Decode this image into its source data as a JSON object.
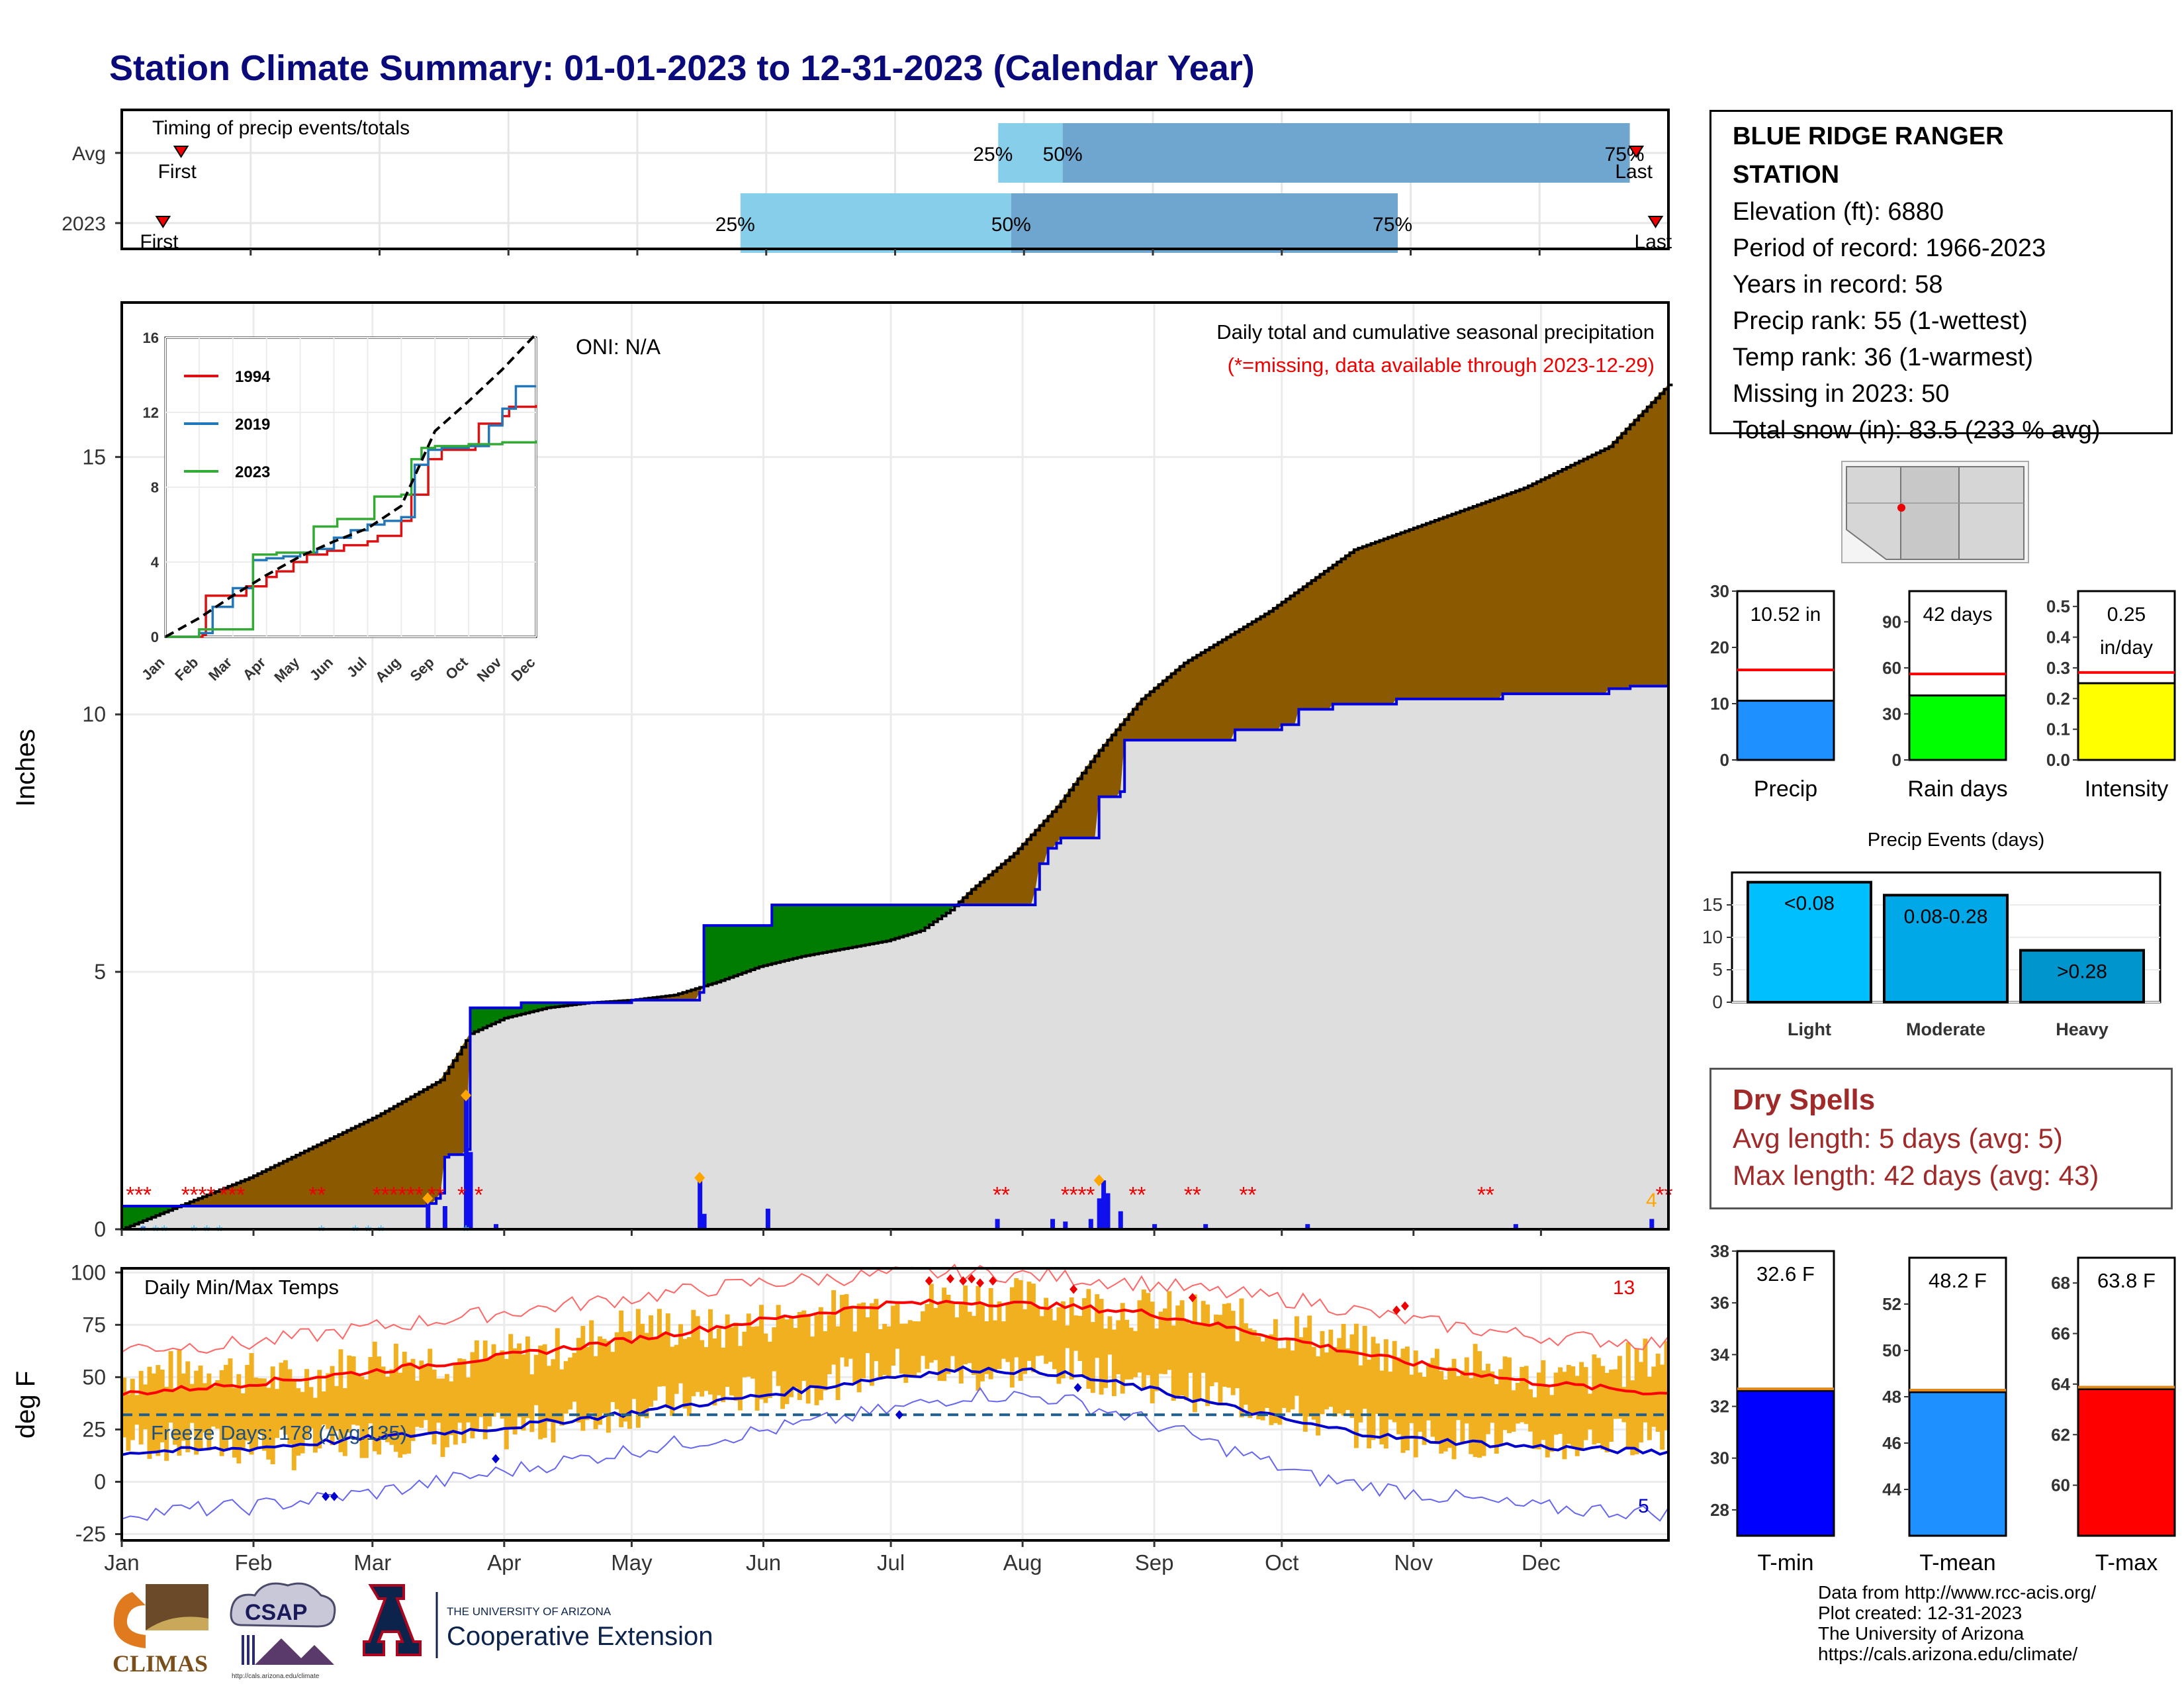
{
  "title": "Station Climate Summary: 01-01-2023 to 12-31-2023 (Calendar Year)",
  "station_info": {
    "name": "BLUE RIDGE RANGER STATION",
    "rows": [
      "Elevation (ft): 6880",
      "Period of record: 1966-2023",
      "Years in record: 58",
      "Precip rank: 55 (1-wettest)",
      "Temp rank: 36 (1-warmest)",
      "Missing in 2023: 50",
      "Total snow (in): 83.5 (233 % avg)"
    ]
  },
  "dry_spells": {
    "header": "Dry Spells",
    "avg": "Avg length: 5 days (avg: 5)",
    "max": "Max length: 42 days (avg: 43)"
  },
  "credits": [
    "Data from http://www.rcc-acis.org/",
    "Plot created: 12-31-2023",
    "The University of Arizona",
    "https://cals.arizona.edu/climate/"
  ],
  "logos": {
    "climas": "CLIMAS",
    "csap": "CSAP",
    "csap_url": "http://cals.arizona.edu/climate",
    "ua_small": "THE UNIVERSITY OF ARIZONA",
    "ua_ext": "Cooperative Extension"
  },
  "colors": {
    "navy_title": "#0a0a7a",
    "cum_avg_fill": "#8b5a00",
    "above_avg_fill": "#007d00",
    "base_gray": "#dedede",
    "precip_line": "#0000dd",
    "temp_bar": "#f0b020",
    "temp_max": "#ff0000",
    "temp_min": "#0000cc",
    "light_blue": "#87ceeb",
    "mid_blue": "#6fa6cf"
  },
  "chart_data": [
    {
      "type": "bar",
      "title": "Timing of precip events/totals",
      "categories": [
        "Avg",
        "2023"
      ],
      "series": [
        {
          "name": "25%",
          "values": [
            6.8,
            4.8
          ]
        },
        {
          "name": "50%",
          "values": [
            7.3,
            6.9
          ]
        },
        {
          "name": "75%",
          "values": [
            11.7,
            9.9
          ]
        }
      ],
      "first": [
        0.46,
        0.32
      ],
      "last": [
        11.75,
        11.9
      ],
      "xlim": [
        0,
        12
      ],
      "labels": {
        "first": "First",
        "last": "Last",
        "q25": "25%",
        "q50": "50%",
        "q75": "75%"
      }
    },
    {
      "type": "area",
      "title": "Daily total and cumulative seasonal precipitation",
      "subtitle": "(*=missing, data available through 2023-12-29)",
      "annotation": "ONI: N/A",
      "ylabel": "Inches",
      "ylim": [
        0,
        18
      ],
      "yticks": [
        0,
        5,
        10,
        15
      ],
      "x_months": [
        "Jan",
        "Feb",
        "Mar",
        "Apr",
        "May",
        "Jun",
        "Jul",
        "Aug",
        "Sep",
        "Oct",
        "Nov",
        "Dec"
      ],
      "avg_cumulative": {
        "x": [
          0,
          15,
          30,
          45,
          60,
          75,
          79,
          82,
          90,
          100,
          110,
          120,
          130,
          140,
          150,
          160,
          170,
          180,
          188,
          195,
          200,
          210,
          220,
          230,
          240,
          250,
          260,
          270,
          280,
          290,
          300,
          310,
          320,
          330,
          340,
          350,
          364
        ],
        "y": [
          0,
          0.5,
          1.0,
          1.6,
          2.2,
          2.9,
          3.4,
          3.8,
          4.1,
          4.3,
          4.4,
          4.45,
          4.55,
          4.8,
          5.1,
          5.3,
          5.45,
          5.6,
          5.8,
          6.2,
          6.6,
          7.3,
          8.2,
          9.3,
          10.3,
          11.0,
          11.5,
          12.0,
          12.6,
          13.2,
          13.5,
          13.8,
          14.1,
          14.4,
          14.8,
          15.2,
          16.4
        ]
      },
      "cumulative_2023": {
        "x": [
          0,
          5,
          10,
          15,
          25,
          30,
          40,
          45,
          60,
          65,
          66,
          72,
          74,
          75,
          76,
          77,
          81,
          82,
          94,
          120,
          136,
          137,
          152,
          153,
          196,
          215,
          216,
          218,
          220,
          221,
          222,
          223,
          230,
          235,
          236,
          262,
          273,
          277,
          285,
          297,
          300,
          325,
          350,
          355,
          364
        ],
        "y": [
          0.45,
          0.45,
          0.45,
          0.45,
          0.45,
          0.45,
          0.45,
          0.45,
          0.45,
          0.45,
          0.45,
          0.5,
          0.6,
          0.7,
          1.4,
          1.45,
          1.55,
          4.3,
          4.4,
          4.45,
          4.6,
          5.9,
          5.9,
          6.3,
          6.3,
          6.6,
          7.1,
          7.4,
          7.5,
          7.6,
          7.6,
          7.6,
          8.4,
          8.5,
          9.5,
          9.7,
          9.8,
          10.1,
          10.2,
          10.2,
          10.3,
          10.4,
          10.5,
          10.55,
          10.5
        ]
      },
      "daily_precip_bars": [
        {
          "day": 5,
          "value": 0.05
        },
        {
          "day": 72,
          "value": 0.6
        },
        {
          "day": 76,
          "value": 0.45
        },
        {
          "day": 81,
          "value": 2.6
        },
        {
          "day": 82,
          "value": 1.5
        },
        {
          "day": 88,
          "value": 0.1
        },
        {
          "day": 136,
          "value": 1.0
        },
        {
          "day": 137,
          "value": 0.3
        },
        {
          "day": 152,
          "value": 0.4
        },
        {
          "day": 206,
          "value": 0.2
        },
        {
          "day": 219,
          "value": 0.2
        },
        {
          "day": 222,
          "value": 0.15
        },
        {
          "day": 228,
          "value": 0.2
        },
        {
          "day": 230,
          "value": 0.6
        },
        {
          "day": 231,
          "value": 0.95
        },
        {
          "day": 232,
          "value": 0.7
        },
        {
          "day": 235,
          "value": 0.35
        },
        {
          "day": 243,
          "value": 0.1
        },
        {
          "day": 255,
          "value": 0.1
        },
        {
          "day": 279,
          "value": 0.1
        },
        {
          "day": 328,
          "value": 0.1
        },
        {
          "day": 360,
          "value": 0.2
        }
      ],
      "count_label": "4",
      "inset": {
        "type": "line",
        "yticks": [
          0,
          4,
          8,
          12,
          16
        ],
        "ylim": [
          0,
          16
        ],
        "x_months": [
          "Jan",
          "Feb",
          "Mar",
          "Apr",
          "May",
          "Jun",
          "Jul",
          "Aug",
          "Sep",
          "Oct",
          "Nov",
          "Dec"
        ],
        "series": [
          {
            "name": "1994",
            "color": "#dd1111",
            "x": [
              0,
              1.1,
              1.2,
              2,
              2.4,
              3,
              3.3,
              3.8,
              4.2,
              4.8,
              5.3,
              6,
              6.3,
              7,
              7.3,
              7.8,
              8.2,
              9.2,
              9.3,
              10,
              10.2,
              11
            ],
            "y": [
              0,
              0.1,
              2.2,
              2.2,
              2.7,
              3.2,
              3.5,
              4.0,
              4.4,
              4.6,
              4.9,
              5.1,
              5.4,
              6.2,
              7.6,
              9.5,
              10.0,
              10.2,
              11.4,
              11.8,
              12.3,
              12.4
            ]
          },
          {
            "name": "2019",
            "color": "#2277bb",
            "x": [
              0,
              1,
              1.4,
              2,
              2.6,
              3,
              3.5,
              4,
              4.5,
              5,
              5.5,
              6,
              6.5,
              7,
              7.4,
              7.8,
              8.2,
              9.0,
              9.6,
              10,
              10.4,
              11
            ],
            "y": [
              0,
              0.2,
              1.6,
              2.6,
              4.1,
              4.2,
              4.3,
              4.5,
              4.7,
              5.3,
              5.7,
              6.0,
              6.2,
              6.4,
              9.2,
              10.0,
              10.1,
              10.2,
              11.3,
              12.2,
              13.4,
              13.4
            ]
          },
          {
            "name": "2023",
            "color": "#33aa33",
            "x": [
              0,
              1,
              2.6,
              2.6,
              3.3,
              4,
              4.4,
              5,
              5.1,
              6,
              6.2,
              7,
              7.3,
              7.6,
              8,
              9,
              10,
              11
            ],
            "y": [
              0,
              0.4,
              0.4,
              4.4,
              4.5,
              4.5,
              5.9,
              5.9,
              6.3,
              6.3,
              7.5,
              7.6,
              9.5,
              10.1,
              10.2,
              10.3,
              10.4,
              10.5
            ]
          },
          {
            "name": "Avg",
            "color": "#000000",
            "dashed": true,
            "x": [
              0,
              1,
              2,
              3,
              4,
              5,
              6,
              7,
              7.5,
              8,
              8.5,
              9,
              10,
              11
            ],
            "y": [
              0,
              1.0,
              2.2,
              3.3,
              4.3,
              5.1,
              5.8,
              7.0,
              9.0,
              11.0,
              11.8,
              12.6,
              14.3,
              16.2
            ]
          }
        ]
      }
    },
    {
      "type": "line",
      "title": "Daily Min/Max Temps",
      "ylabel": "deg F",
      "ylim": [
        -28,
        102
      ],
      "yticks": [
        -25,
        0,
        25,
        50,
        75,
        100
      ],
      "x_months": [
        "Jan",
        "Feb",
        "Mar",
        "Apr",
        "May",
        "Jun",
        "Jul",
        "Aug",
        "Sep",
        "Oct",
        "Nov",
        "Dec"
      ],
      "freeze_label": "Freeze Days: 178 (Avg:135)",
      "freeze_line": 32,
      "count_hot": "13",
      "count_cold": "5",
      "avg_max": {
        "x": [
          0,
          30,
          60,
          90,
          120,
          150,
          180,
          200,
          220,
          240,
          260,
          280,
          300,
          330,
          364
        ],
        "y": [
          42,
          47,
          53,
          60,
          68,
          77,
          85,
          86,
          84,
          81,
          74,
          66,
          58,
          48,
          42
        ]
      },
      "avg_min": {
        "x": [
          0,
          30,
          60,
          90,
          120,
          150,
          180,
          200,
          220,
          240,
          260,
          280,
          300,
          330,
          364
        ],
        "y": [
          14,
          16,
          21,
          26,
          33,
          41,
          50,
          54,
          52,
          45,
          36,
          27,
          21,
          17,
          14
        ]
      },
      "record_max": {
        "x": [
          0,
          30,
          60,
          90,
          120,
          150,
          180,
          200,
          220,
          240,
          260,
          280,
          300,
          330,
          364
        ],
        "y": [
          64,
          66,
          74,
          81,
          88,
          95,
          99,
          100,
          98,
          95,
          90,
          86,
          78,
          70,
          66
        ]
      },
      "record_min": {
        "x": [
          0,
          30,
          60,
          90,
          120,
          150,
          180,
          200,
          220,
          240,
          260,
          280,
          300,
          330,
          364
        ],
        "y": [
          -15,
          -12,
          -5,
          5,
          15,
          24,
          34,
          42,
          40,
          30,
          16,
          2,
          -4,
          -12,
          -15
        ]
      },
      "daily_high": {
        "x": [
          0,
          20,
          40,
          60,
          80,
          100,
          120,
          140,
          160,
          180,
          200,
          220,
          240,
          260,
          280,
          300,
          320,
          340,
          364
        ],
        "y": [
          50,
          55,
          48,
          60,
          58,
          62,
          75,
          72,
          80,
          84,
          88,
          86,
          82,
          78,
          70,
          60,
          55,
          48,
          62
        ]
      },
      "daily_low": {
        "x": [
          0,
          20,
          40,
          60,
          80,
          100,
          120,
          140,
          160,
          180,
          200,
          220,
          240,
          260,
          280,
          300,
          320,
          340,
          364
        ],
        "y": [
          20,
          18,
          15,
          22,
          20,
          28,
          35,
          40,
          45,
          55,
          52,
          55,
          48,
          40,
          30,
          22,
          20,
          18,
          25
        ]
      }
    },
    {
      "type": "bar",
      "panel": "totals",
      "categories": [
        "Precip",
        "Rain days",
        "Intensity"
      ],
      "values": [
        10.52,
        42,
        0.25
      ],
      "averages": [
        16.0,
        56,
        0.285
      ],
      "value_labels": [
        "10.52 in",
        "42 days",
        "0.25 in/day"
      ],
      "ylims": [
        [
          0,
          30
        ],
        [
          0,
          110
        ],
        [
          0,
          0.55
        ]
      ],
      "yticks": [
        [
          0,
          10,
          20,
          30
        ],
        [
          0,
          30,
          60,
          90
        ],
        [
          0.0,
          0.1,
          0.2,
          0.3,
          0.4,
          0.5
        ]
      ],
      "bar_colors": [
        "#1e90ff",
        "#00ff00",
        "#ffff00"
      ]
    },
    {
      "type": "bar",
      "title": "Precip Events (days)",
      "categories": [
        "Light",
        "Moderate",
        "Heavy"
      ],
      "values": [
        18.5,
        16.5,
        8
      ],
      "value_labels": [
        "<0.08",
        "0.08-0.28",
        ">0.28"
      ],
      "ylim": [
        0,
        20
      ],
      "yticks": [
        0,
        5,
        10,
        15
      ],
      "bar_colors": [
        "#00bfff",
        "#00a8e8",
        "#0095cc"
      ]
    },
    {
      "type": "bar",
      "panel": "temperature means",
      "categories": [
        "T-min",
        "T-mean",
        "T-max"
      ],
      "values": [
        32.6,
        48.2,
        63.8
      ],
      "value_labels": [
        "32.6 F",
        "48.2 F",
        "63.8 F"
      ],
      "ylims": [
        [
          27,
          38
        ],
        [
          42,
          54
        ],
        [
          58,
          69
        ]
      ],
      "yticks": [
        [
          28,
          30,
          32,
          34,
          36,
          38
        ],
        [
          44,
          46,
          48,
          50,
          52
        ],
        [
          60,
          62,
          64,
          66,
          68
        ]
      ],
      "bar_colors": [
        "#0000ff",
        "#1e90ff",
        "#ff0000"
      ]
    }
  ]
}
